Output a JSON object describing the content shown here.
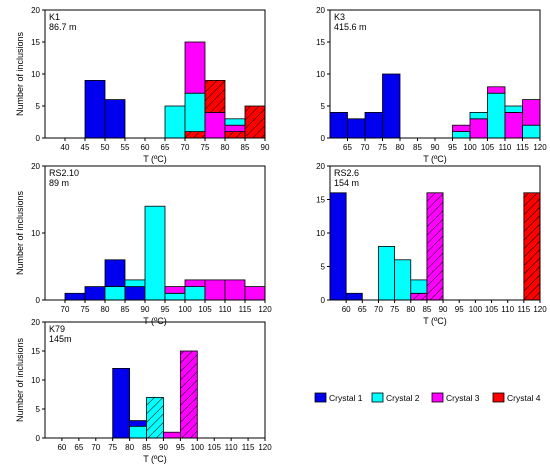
{
  "colors": {
    "Crystal 1": "#0000ee",
    "Crystal 2": "#00ffff",
    "Crystal 3": "#ff00ff",
    "Crystal 4": "#ff0000"
  },
  "legend": {
    "placement": "bottom-right",
    "entries": [
      {
        "name": "Crystal 1",
        "hatched": false
      },
      {
        "name": "Crystal 2",
        "hatched": false
      },
      {
        "name": "Crystal 3",
        "hatched": false
      },
      {
        "name": "Crystal 4",
        "hatched": false
      }
    ]
  },
  "chart_data": [
    {
      "type": "bar",
      "title": "K1",
      "subtitle": "86.7 m",
      "xlabel": "T (ºC)",
      "ylabel": "Number of inclusions",
      "xlim": [
        35,
        90
      ],
      "ylim": [
        0,
        20
      ],
      "xticks": [
        40,
        45,
        50,
        55,
        60,
        65,
        70,
        75,
        80,
        85,
        90
      ],
      "yticks": [
        0,
        5,
        10,
        15,
        20
      ],
      "bin_width": 5,
      "bars": [
        {
          "crystal": "Crystal 1",
          "x0": 45,
          "bottom": 0,
          "value": 9,
          "hatched": false
        },
        {
          "crystal": "Crystal 1",
          "x0": 50,
          "bottom": 0,
          "value": 6,
          "hatched": false
        },
        {
          "crystal": "Crystal 2",
          "x0": 65,
          "bottom": 0,
          "value": 5,
          "hatched": false
        },
        {
          "crystal": "Crystal 4",
          "x0": 70,
          "bottom": 0,
          "value": 1,
          "hatched": true
        },
        {
          "crystal": "Crystal 2",
          "x0": 70,
          "bottom": 1,
          "value": 6,
          "hatched": false
        },
        {
          "crystal": "Crystal 3",
          "x0": 70,
          "bottom": 7,
          "value": 8,
          "hatched": false
        },
        {
          "crystal": "Crystal 3",
          "x0": 75,
          "bottom": 0,
          "value": 4,
          "hatched": false
        },
        {
          "crystal": "Crystal 4",
          "x0": 75,
          "bottom": 4,
          "value": 5,
          "hatched": true
        },
        {
          "crystal": "Crystal 4",
          "x0": 80,
          "bottom": 0,
          "value": 1,
          "hatched": true
        },
        {
          "crystal": "Crystal 3",
          "x0": 80,
          "bottom": 1,
          "value": 1,
          "hatched": false
        },
        {
          "crystal": "Crystal 2",
          "x0": 80,
          "bottom": 2,
          "value": 1,
          "hatched": false
        },
        {
          "crystal": "Crystal 4",
          "x0": 85,
          "bottom": 0,
          "value": 5,
          "hatched": true
        }
      ]
    },
    {
      "type": "bar",
      "title": "K3",
      "subtitle": "415.6 m",
      "xlabel": "T (ºC)",
      "ylabel": "",
      "xlim": [
        60,
        120
      ],
      "ylim": [
        0,
        20
      ],
      "xticks": [
        65,
        70,
        75,
        80,
        85,
        90,
        95,
        100,
        105,
        110,
        115,
        120
      ],
      "yticks": [
        0,
        5,
        10,
        15,
        20
      ],
      "bin_width": 5,
      "bars": [
        {
          "crystal": "Crystal 1",
          "x0": 60,
          "bottom": 0,
          "value": 4,
          "hatched": false
        },
        {
          "crystal": "Crystal 1",
          "x0": 65,
          "bottom": 0,
          "value": 3,
          "hatched": false
        },
        {
          "crystal": "Crystal 1",
          "x0": 70,
          "bottom": 0,
          "value": 4,
          "hatched": false
        },
        {
          "crystal": "Crystal 1",
          "x0": 75,
          "bottom": 0,
          "value": 10,
          "hatched": false
        },
        {
          "crystal": "Crystal 2",
          "x0": 95,
          "bottom": 0,
          "value": 1,
          "hatched": false
        },
        {
          "crystal": "Crystal 3",
          "x0": 95,
          "bottom": 1,
          "value": 1,
          "hatched": false
        },
        {
          "crystal": "Crystal 3",
          "x0": 100,
          "bottom": 0,
          "value": 3,
          "hatched": false
        },
        {
          "crystal": "Crystal 2",
          "x0": 100,
          "bottom": 3,
          "value": 1,
          "hatched": false
        },
        {
          "crystal": "Crystal 2",
          "x0": 105,
          "bottom": 0,
          "value": 7,
          "hatched": false
        },
        {
          "crystal": "Crystal 3",
          "x0": 105,
          "bottom": 7,
          "value": 1,
          "hatched": false
        },
        {
          "crystal": "Crystal 3",
          "x0": 110,
          "bottom": 0,
          "value": 4,
          "hatched": false
        },
        {
          "crystal": "Crystal 2",
          "x0": 110,
          "bottom": 4,
          "value": 1,
          "hatched": false
        },
        {
          "crystal": "Crystal 2",
          "x0": 115,
          "bottom": 0,
          "value": 2,
          "hatched": false
        },
        {
          "crystal": "Crystal 3",
          "x0": 115,
          "bottom": 2,
          "value": 4,
          "hatched": false
        }
      ]
    },
    {
      "type": "bar",
      "title": "RS2.10",
      "subtitle": "89 m",
      "xlabel": "T (ºC)",
      "ylabel": "Number of inclusions",
      "xlim": [
        65,
        120
      ],
      "ylim": [
        0,
        20
      ],
      "xticks": [
        70,
        75,
        80,
        85,
        90,
        95,
        100,
        105,
        110,
        115,
        120
      ],
      "yticks": [
        0,
        10,
        20
      ],
      "bin_width": 5,
      "bars": [
        {
          "crystal": "Crystal 1",
          "x0": 70,
          "bottom": 0,
          "value": 1,
          "hatched": false
        },
        {
          "crystal": "Crystal 1",
          "x0": 75,
          "bottom": 0,
          "value": 2,
          "hatched": false
        },
        {
          "crystal": "Crystal 1",
          "x0": 80,
          "bottom": 2,
          "value": 4,
          "hatched": false
        },
        {
          "crystal": "Crystal 2",
          "x0": 80,
          "bottom": 0,
          "value": 2,
          "hatched": false
        },
        {
          "crystal": "Crystal 1",
          "x0": 85,
          "bottom": 0,
          "value": 2,
          "hatched": false
        },
        {
          "crystal": "Crystal 2",
          "x0": 85,
          "bottom": 2,
          "value": 1,
          "hatched": false
        },
        {
          "crystal": "Crystal 2",
          "x0": 90,
          "bottom": 0,
          "value": 14,
          "hatched": false
        },
        {
          "crystal": "Crystal 2",
          "x0": 95,
          "bottom": 0,
          "value": 1,
          "hatched": false
        },
        {
          "crystal": "Crystal 3",
          "x0": 95,
          "bottom": 1,
          "value": 1,
          "hatched": false
        },
        {
          "crystal": "Crystal 2",
          "x0": 100,
          "bottom": 0,
          "value": 2,
          "hatched": false
        },
        {
          "crystal": "Crystal 3",
          "x0": 100,
          "bottom": 2,
          "value": 1,
          "hatched": false
        },
        {
          "crystal": "Crystal 3",
          "x0": 105,
          "bottom": 0,
          "value": 3,
          "hatched": false
        },
        {
          "crystal": "Crystal 3",
          "x0": 110,
          "bottom": 0,
          "value": 3,
          "hatched": false
        },
        {
          "crystal": "Crystal 3",
          "x0": 115,
          "bottom": 0,
          "value": 2,
          "hatched": false
        }
      ]
    },
    {
      "type": "bar",
      "title": "RS2.6",
      "subtitle": "154 m",
      "xlabel": "T (ºC)",
      "ylabel": "",
      "xlim": [
        55,
        120
      ],
      "ylim": [
        0,
        20
      ],
      "xticks": [
        60,
        65,
        70,
        75,
        80,
        85,
        90,
        95,
        100,
        105,
        110,
        115,
        120
      ],
      "yticks": [
        0,
        5,
        10,
        15,
        20
      ],
      "bin_width": 5,
      "bars": [
        {
          "crystal": "Crystal 1",
          "x0": 55,
          "bottom": 0,
          "value": 16,
          "hatched": false
        },
        {
          "crystal": "Crystal 1",
          "x0": 60,
          "bottom": 0,
          "value": 1,
          "hatched": false
        },
        {
          "crystal": "Crystal 2",
          "x0": 70,
          "bottom": 0,
          "value": 8,
          "hatched": false
        },
        {
          "crystal": "Crystal 2",
          "x0": 75,
          "bottom": 0,
          "value": 6,
          "hatched": false
        },
        {
          "crystal": "Crystal 3",
          "x0": 80,
          "bottom": 0,
          "value": 1,
          "hatched": true
        },
        {
          "crystal": "Crystal 2",
          "x0": 80,
          "bottom": 1,
          "value": 2,
          "hatched": false
        },
        {
          "crystal": "Crystal 3",
          "x0": 85,
          "bottom": 0,
          "value": 16,
          "hatched": true
        },
        {
          "crystal": "Crystal 4",
          "x0": 115,
          "bottom": 0,
          "value": 16,
          "hatched": true
        }
      ]
    },
    {
      "type": "bar",
      "title": "K79",
      "subtitle": "145m",
      "xlabel": "T (ºC)",
      "ylabel": "Number of inclusions",
      "xlim": [
        55,
        120
      ],
      "ylim": [
        0,
        20
      ],
      "xticks": [
        60,
        65,
        70,
        75,
        80,
        85,
        90,
        95,
        100,
        105,
        110,
        115,
        120
      ],
      "yticks": [
        0,
        5,
        10,
        15,
        20
      ],
      "bin_width": 5,
      "bars": [
        {
          "crystal": "Crystal 1",
          "x0": 75,
          "bottom": 0,
          "value": 12,
          "hatched": false
        },
        {
          "crystal": "Crystal 1",
          "x0": 80,
          "bottom": 2,
          "value": 1,
          "hatched": false
        },
        {
          "crystal": "Crystal 2",
          "x0": 80,
          "bottom": 0,
          "value": 2,
          "hatched": false
        },
        {
          "crystal": "Crystal 2",
          "x0": 85,
          "bottom": 0,
          "value": 7,
          "hatched": true
        },
        {
          "crystal": "Crystal 3",
          "x0": 90,
          "bottom": 0,
          "value": 1,
          "hatched": false
        },
        {
          "crystal": "Crystal 3",
          "x0": 95,
          "bottom": 0,
          "value": 15,
          "hatched": true
        }
      ]
    }
  ]
}
